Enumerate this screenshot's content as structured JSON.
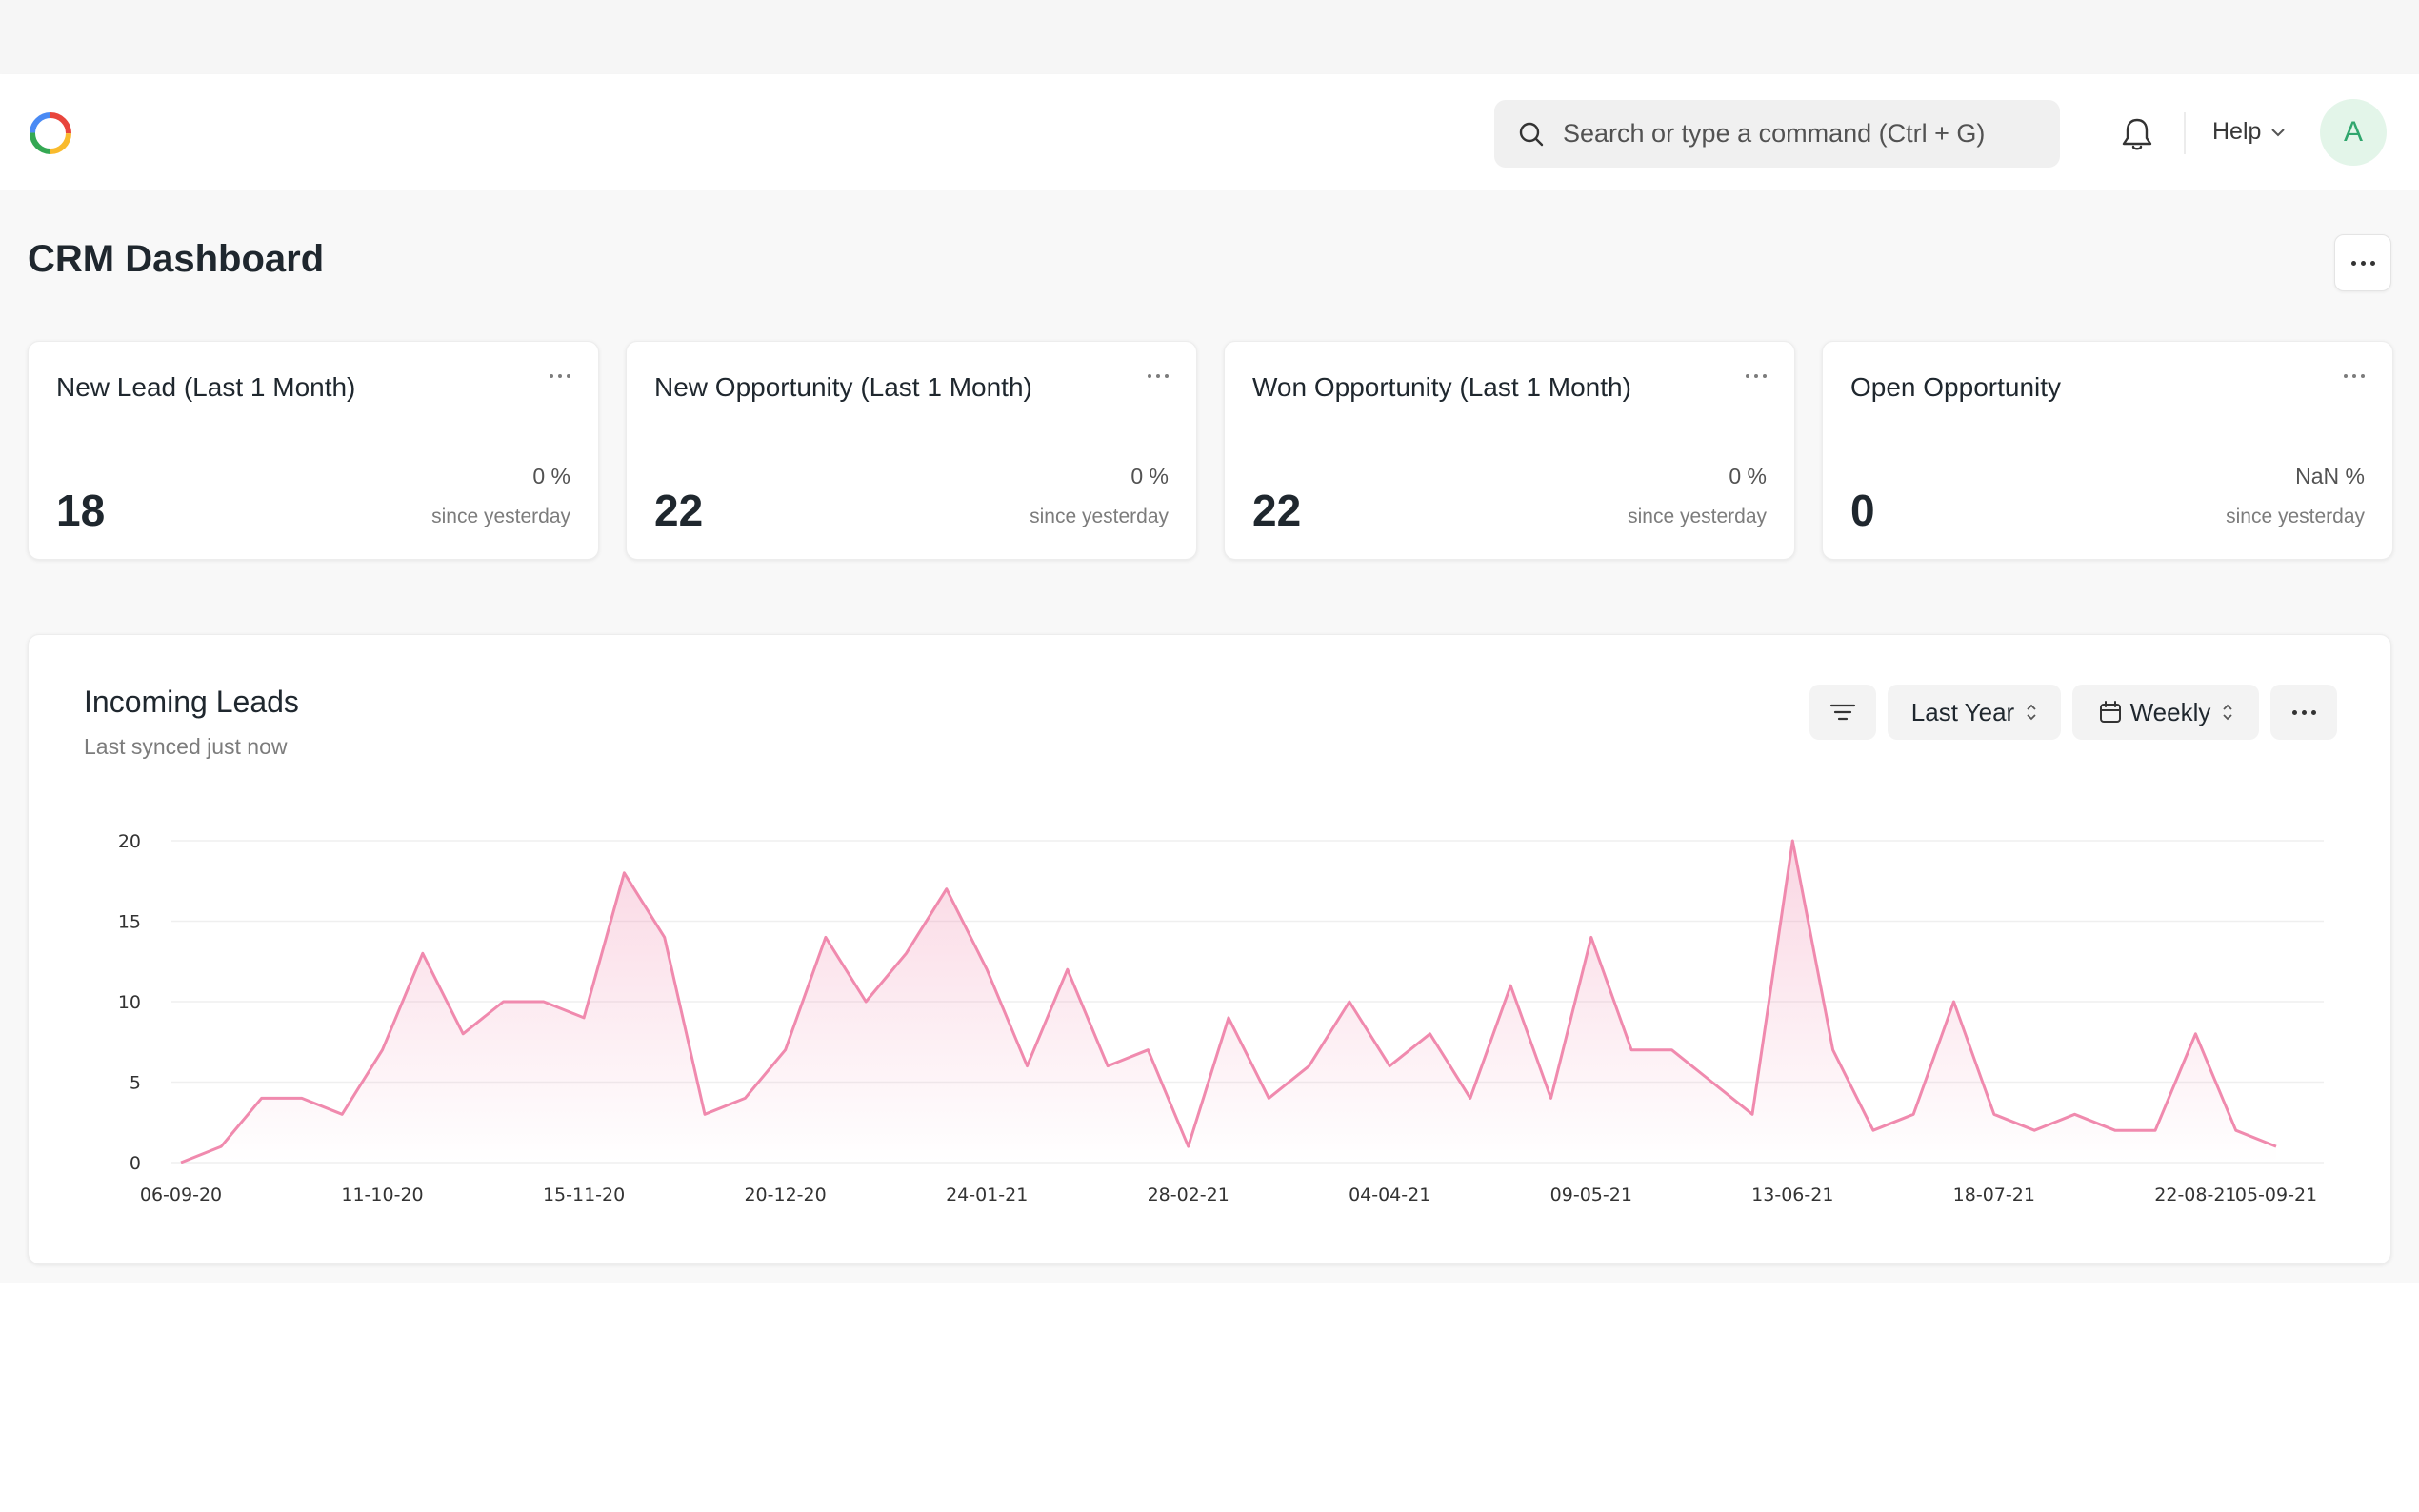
{
  "navbar": {
    "search_placeholder": "Search or type a command (Ctrl + G)",
    "help_label": "Help",
    "avatar_initial": "A"
  },
  "page": {
    "title": "CRM Dashboard"
  },
  "cards": [
    {
      "title": "New Lead (Last 1 Month)",
      "value": "18",
      "change": "0 %",
      "since": "since yesterday"
    },
    {
      "title": "New Opportunity (Last 1 Month)",
      "value": "22",
      "change": "0 %",
      "since": "since yesterday"
    },
    {
      "title": "Won Opportunity (Last 1 Month)",
      "value": "22",
      "change": "0 %",
      "since": "since yesterday"
    },
    {
      "title": "Open Opportunity",
      "value": "0",
      "change": "NaN %",
      "since": "since yesterday"
    }
  ],
  "chart_card": {
    "title": "Incoming Leads",
    "subtitle": "Last synced just now",
    "range_label": "Last Year",
    "period_label": "Weekly"
  },
  "colors": {
    "line": "#f08aae",
    "accent_green": "#30a66d"
  },
  "chart_data": {
    "type": "area",
    "title": "Incoming Leads",
    "xlabel": "",
    "ylabel": "",
    "ylim": [
      0,
      20
    ],
    "yticks": [
      0,
      5,
      10,
      15,
      20
    ],
    "grid": true,
    "x_tick_labels": [
      "06-09-20",
      "11-10-20",
      "15-11-20",
      "20-12-20",
      "24-01-21",
      "28-02-21",
      "04-04-21",
      "09-05-21",
      "13-06-21",
      "18-07-21",
      "22-08-21",
      "05-09-21"
    ],
    "x_tick_index": [
      0,
      5,
      10,
      15,
      20,
      25,
      30,
      35,
      40,
      45,
      50,
      52
    ],
    "series": [
      {
        "values": [
          0,
          1,
          4,
          4,
          3,
          7,
          13,
          8,
          10,
          10,
          9,
          18,
          14,
          3,
          4,
          7,
          14,
          10,
          13,
          17,
          12,
          6,
          12,
          6,
          7,
          1,
          9,
          4,
          6,
          10,
          6,
          8,
          4,
          11,
          4,
          14,
          7,
          7,
          5,
          3,
          20,
          7,
          2,
          3,
          10,
          3,
          2,
          3,
          2,
          2,
          8,
          2,
          1
        ]
      }
    ]
  }
}
